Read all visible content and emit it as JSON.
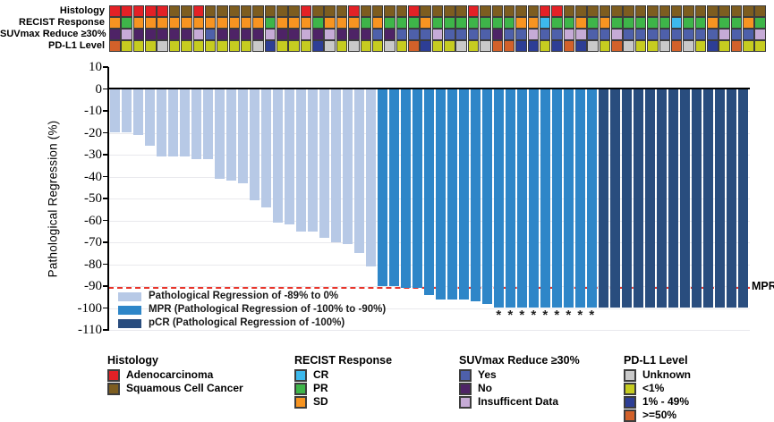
{
  "annotation": {
    "rows": [
      {
        "id": "histology",
        "label": "Histology",
        "codes": [
          "A",
          "A",
          "A",
          "A",
          "A",
          "S",
          "S",
          "A",
          "S",
          "S",
          "S",
          "S",
          "S",
          "S",
          "S",
          "S",
          "A",
          "S",
          "S",
          "S",
          "A",
          "S",
          "S",
          "S",
          "S",
          "A",
          "S",
          "S",
          "S",
          "S",
          "A",
          "S",
          "S",
          "S",
          "S",
          "S",
          "A",
          "A",
          "S",
          "S",
          "S",
          "S",
          "S",
          "S",
          "S",
          "S",
          "S",
          "S",
          "S",
          "S",
          "S",
          "S",
          "S",
          "S",
          "S"
        ]
      },
      {
        "id": "recist",
        "label": "RECIST Response",
        "codes": [
          "SD",
          "PR",
          "SD",
          "SD",
          "SD",
          "SD",
          "SD",
          "SD",
          "SD",
          "SD",
          "SD",
          "SD",
          "SD",
          "PR",
          "SD",
          "SD",
          "SD",
          "PR",
          "SD",
          "SD",
          "SD",
          "PR",
          "SD",
          "PR",
          "PR",
          "PR",
          "SD",
          "PR",
          "PR",
          "PR",
          "PR",
          "PR",
          "PR",
          "PR",
          "SD",
          "SD",
          "CR",
          "PR",
          "PR",
          "SD",
          "PR",
          "SD",
          "PR",
          "PR",
          "PR",
          "PR",
          "PR",
          "CR",
          "PR",
          "PR",
          "SD",
          "PR",
          "PR",
          "SD",
          "PR"
        ]
      },
      {
        "id": "suvmax",
        "label": "SUVmax Reduce ≥30%",
        "codes": [
          "N",
          "I",
          "N",
          "N",
          "N",
          "N",
          "N",
          "I",
          "Y",
          "N",
          "N",
          "N",
          "N",
          "I",
          "N",
          "N",
          "I",
          "N",
          "I",
          "N",
          "N",
          "N",
          "Y",
          "N",
          "Y",
          "Y",
          "Y",
          "I",
          "Y",
          "Y",
          "Y",
          "Y",
          "N",
          "Y",
          "Y",
          "I",
          "Y",
          "Y",
          "I",
          "I",
          "Y",
          "Y",
          "I",
          "Y",
          "Y",
          "Y",
          "Y",
          "Y",
          "Y",
          "Y",
          "Y",
          "I",
          "Y",
          "Y",
          "I"
        ]
      },
      {
        "id": "pdl1",
        "label": "PD-L1 Level",
        "codes": [
          "H",
          "L",
          "L",
          "L",
          "U",
          "L",
          "L",
          "L",
          "L",
          "L",
          "L",
          "L",
          "U",
          "M",
          "L",
          "L",
          "L",
          "M",
          "U",
          "L",
          "U",
          "L",
          "L",
          "U",
          "L",
          "H",
          "M",
          "L",
          "L",
          "U",
          "L",
          "U",
          "H",
          "H",
          "M",
          "M",
          "L",
          "M",
          "H",
          "M",
          "U",
          "L",
          "H",
          "U",
          "L",
          "L",
          "U",
          "H",
          "U",
          "L",
          "M",
          "L",
          "H",
          "L",
          "L"
        ]
      }
    ],
    "palettes": {
      "histology": {
        "A": "#e32126",
        "S": "#7d5d20"
      },
      "recist": {
        "CR": "#3db9ec",
        "PR": "#3eb549",
        "SD": "#f79421"
      },
      "suvmax": {
        "Y": "#4e60aa",
        "N": "#4e2366",
        "I": "#c6abd6"
      },
      "pdl1": {
        "U": "#c9c9c9",
        "L": "#c6cc20",
        "M": "#2d3e95",
        "H": "#d2612a"
      }
    }
  },
  "chart_data": {
    "type": "bar",
    "title": "",
    "xlabel": "",
    "ylabel": "Pathological Regression (%)",
    "ylim": [
      -110,
      10
    ],
    "yticks": [
      10,
      0,
      -10,
      -20,
      -30,
      -40,
      -50,
      -60,
      -70,
      -80,
      -90,
      -100,
      -110
    ],
    "grid": true,
    "values": [
      -20,
      -20,
      -21,
      -26,
      -31,
      -31,
      -31,
      -32,
      -32,
      -41,
      -42,
      -43,
      -51,
      -54,
      -61,
      -62,
      -65,
      -65,
      -68,
      -70,
      -71,
      -75,
      -81,
      -90,
      -90,
      -91,
      -91,
      -94,
      -96,
      -96,
      -96,
      -97,
      -98,
      -100,
      -100,
      -100,
      -100,
      -100,
      -100,
      -100,
      -100,
      -100,
      -100,
      -100,
      -100,
      -100,
      -100,
      -100,
      -100,
      -100,
      -100,
      -100,
      -100,
      -100,
      -100
    ],
    "groups": [
      "regression",
      "regression",
      "regression",
      "regression",
      "regression",
      "regression",
      "regression",
      "regression",
      "regression",
      "regression",
      "regression",
      "regression",
      "regression",
      "regression",
      "regression",
      "regression",
      "regression",
      "regression",
      "regression",
      "regression",
      "regression",
      "regression",
      "regression",
      "MPR",
      "MPR",
      "MPR",
      "MPR",
      "MPR",
      "MPR",
      "MPR",
      "MPR",
      "MPR",
      "MPR",
      "MPR",
      "MPR",
      "MPR",
      "MPR",
      "MPR",
      "MPR",
      "MPR",
      "MPR",
      "MPR",
      "pCR",
      "pCR",
      "pCR",
      "pCR",
      "pCR",
      "pCR",
      "pCR",
      "pCR",
      "pCR",
      "pCR",
      "pCR",
      "pCR",
      "pCR"
    ],
    "asterisk_indices": [
      33,
      34,
      35,
      36,
      37,
      38,
      39,
      40,
      41
    ],
    "asterisk_symbol": "*",
    "group_colors": {
      "regression": "#b7c9e6",
      "MPR": "#2e86c8",
      "pCR": "#294d7e"
    },
    "reference_line": {
      "y": -90,
      "label": "MPR",
      "style": "dashed",
      "color": "#e8352b"
    },
    "bar_legend": [
      {
        "group": "regression",
        "label": "Pathological Regression of -89% to 0%"
      },
      {
        "group": "MPR",
        "label": "MPR (Pathological Regression of -100% to -90%)"
      },
      {
        "group": "pCR",
        "label": "pCR (Pathological Regression of -100%)"
      }
    ]
  },
  "bottom_legend": {
    "sections": [
      {
        "title": "Histology",
        "items": [
          {
            "label": "Adenocarcinoma",
            "color": "#e32126"
          },
          {
            "label": "Squamous Cell Cancer",
            "color": "#7d5d20"
          }
        ]
      },
      {
        "title": "RECIST Response",
        "items": [
          {
            "label": "CR",
            "color": "#3db9ec"
          },
          {
            "label": "PR",
            "color": "#3eb549"
          },
          {
            "label": "SD",
            "color": "#f79421"
          }
        ]
      },
      {
        "title": "SUVmax Reduce ≥30%",
        "items": [
          {
            "label": "Yes",
            "color": "#4e60aa"
          },
          {
            "label": "No",
            "color": "#4e2366"
          },
          {
            "label": "Insufficent Data",
            "color": "#c6abd6"
          }
        ]
      },
      {
        "title": "PD-L1 Level",
        "items": [
          {
            "label": "Unknown",
            "color": "#c9c9c9"
          },
          {
            "label": "<1%",
            "color": "#c6cc20"
          },
          {
            "label": "1% - 49%",
            "color": "#2d3e95"
          },
          {
            "label": ">=50%",
            "color": "#d2612a"
          }
        ]
      }
    ]
  }
}
